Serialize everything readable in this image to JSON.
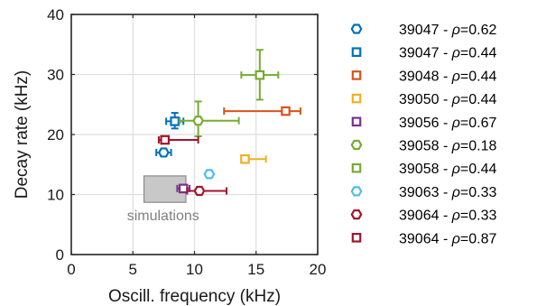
{
  "chart_data": {
    "type": "scatter",
    "title": "",
    "xlabel": "Oscill. frequency (kHz)",
    "ylabel": "Decay rate (kHz)",
    "xlim": [
      0,
      20
    ],
    "ylim": [
      0,
      40
    ],
    "xticks": [
      "0",
      "5",
      "10",
      "15",
      "20"
    ],
    "yticks": [
      "0",
      "10",
      "20",
      "30",
      "40"
    ],
    "grid": true,
    "legend_position": "right-outside",
    "simulations_region": {
      "label": "simulations",
      "x": [
        5.9,
        9.3
      ],
      "y": [
        8.7,
        13.1
      ],
      "color": "#a0a0a0"
    },
    "series": [
      {
        "name": "39047 - ρ=0.62",
        "legend_id": "39047",
        "rho": "0.62",
        "marker": "hexagon",
        "color": "#0072BD",
        "points": [
          {
            "x": 7.5,
            "y": 17.0,
            "xerr": [
              6.9,
              8.1
            ],
            "yerr": [
              16.4,
              17.6
            ]
          }
        ]
      },
      {
        "name": "39047 - ρ=0.44",
        "legend_id": "39047",
        "rho": "0.44",
        "marker": "square",
        "color": "#0072BD",
        "points": [
          {
            "x": 8.4,
            "y": 22.2,
            "xerr": [
              7.7,
              9.1
            ],
            "yerr": [
              21.0,
              23.6
            ]
          }
        ]
      },
      {
        "name": "39048 - ρ=0.44",
        "legend_id": "39048",
        "rho": "0.44",
        "marker": "square",
        "color": "#D95319",
        "points": [
          {
            "x": 17.4,
            "y": 23.9,
            "xerr": [
              12.4,
              18.6
            ],
            "yerr": [
              23.5,
              24.3
            ]
          }
        ]
      },
      {
        "name": "39050 - ρ=0.44",
        "legend_id": "39050",
        "rho": "0.44",
        "marker": "square",
        "color": "#EDB120",
        "points": [
          {
            "x": 14.1,
            "y": 15.9,
            "xerr": [
              14.1,
              15.8
            ],
            "yerr": [
              15.5,
              16.3
            ]
          }
        ]
      },
      {
        "name": "39056 - ρ=0.67",
        "legend_id": "39056",
        "rho": "0.67",
        "marker": "square",
        "color": "#7E2F8E",
        "points": [
          {
            "x": 9.1,
            "y": 11.0,
            "xerr": [
              8.6,
              9.6
            ],
            "yerr": [
              10.5,
              11.5
            ]
          }
        ]
      },
      {
        "name": "39058 - ρ=0.18",
        "legend_id": "39058",
        "rho": "0.18",
        "marker": "hexagon",
        "color": "#77AC30",
        "points": [
          {
            "x": 10.3,
            "y": 22.3,
            "xerr": [
              8.8,
              13.6
            ],
            "yerr": [
              19.7,
              25.5
            ]
          }
        ]
      },
      {
        "name": "39058 - ρ=0.44",
        "legend_id": "39058",
        "rho": "0.44",
        "marker": "square",
        "color": "#77AC30",
        "points": [
          {
            "x": 15.3,
            "y": 29.9,
            "xerr": [
              13.8,
              16.8
            ],
            "yerr": [
              25.8,
              34.1
            ]
          }
        ]
      },
      {
        "name": "39063 - ρ=0.33",
        "legend_id": "39063",
        "rho": "0.33",
        "marker": "hexagon",
        "color": "#4DBEEE",
        "points": [
          {
            "x": 11.2,
            "y": 13.4,
            "xerr": [
              11.2,
              11.2
            ],
            "yerr": [
              13.4,
              13.4
            ]
          }
        ]
      },
      {
        "name": "39064 - ρ=0.33",
        "legend_id": "39064",
        "rho": "0.33",
        "marker": "hexagon",
        "color": "#A2142F",
        "points": [
          {
            "x": 10.4,
            "y": 10.6,
            "xerr": [
              9.4,
              12.6
            ],
            "yerr": [
              10.6,
              10.6
            ]
          }
        ]
      },
      {
        "name": "39064 - ρ=0.87",
        "legend_id": "39064",
        "rho": "0.87",
        "marker": "square",
        "color": "#A2142F",
        "points": [
          {
            "x": 7.6,
            "y": 19.1,
            "xerr": [
              7.1,
              10.3
            ],
            "yerr": [
              18.5,
              19.7
            ]
          }
        ]
      }
    ]
  }
}
